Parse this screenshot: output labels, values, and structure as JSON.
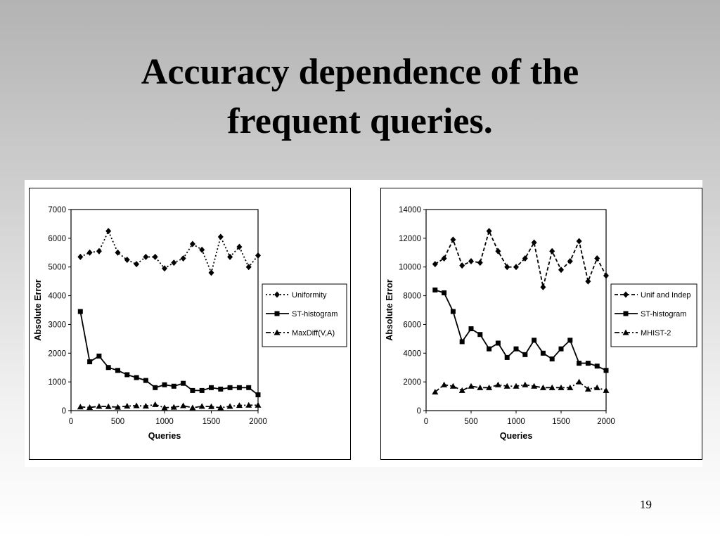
{
  "slide": {
    "title_line1": "Accuracy dependence of the",
    "title_line2": "frequent queries.",
    "page_number": "19"
  },
  "chart_data": [
    {
      "type": "line",
      "title": "",
      "xlabel": "Queries",
      "ylabel": "Absolute Error",
      "xlim": [
        0,
        2000
      ],
      "ylim": [
        0,
        7000
      ],
      "xticks": [
        0,
        500,
        1000,
        1500,
        2000
      ],
      "yticks": [
        0,
        1000,
        2000,
        3000,
        4000,
        5000,
        6000,
        7000
      ],
      "grid": false,
      "legend": "right",
      "x": [
        100,
        200,
        300,
        400,
        500,
        600,
        700,
        800,
        900,
        1000,
        1100,
        1200,
        1300,
        1400,
        1500,
        1600,
        1700,
        1800,
        1900,
        2000
      ],
      "series": [
        {
          "name": "Uniformity",
          "style": "dotted",
          "marker": "diamond",
          "values": [
            5350,
            5500,
            5550,
            6250,
            5500,
            5250,
            5100,
            5350,
            5350,
            4950,
            5150,
            5300,
            5800,
            5600,
            4800,
            6050,
            5350,
            5700,
            5000,
            5400
          ]
        },
        {
          "name": "ST-histogram",
          "style": "solid",
          "marker": "square",
          "values": [
            3450,
            1700,
            1900,
            1500,
            1400,
            1250,
            1150,
            1050,
            800,
            900,
            850,
            950,
            700,
            700,
            800,
            750,
            800,
            800,
            800,
            550
          ]
        },
        {
          "name": "MaxDiff(V,A)",
          "style": "dashdot",
          "marker": "triangle",
          "values": [
            130,
            110,
            150,
            140,
            120,
            160,
            170,
            160,
            210,
            100,
            120,
            170,
            100,
            150,
            140,
            100,
            150,
            180,
            190,
            190
          ]
        }
      ]
    },
    {
      "type": "line",
      "title": "",
      "xlabel": "Queries",
      "ylabel": "Absolute Error",
      "xlim": [
        0,
        2000
      ],
      "ylim": [
        0,
        14000
      ],
      "xticks": [
        0,
        500,
        1000,
        1500,
        2000
      ],
      "yticks": [
        0,
        2000,
        4000,
        6000,
        8000,
        10000,
        12000,
        14000
      ],
      "grid": false,
      "legend": "right",
      "x": [
        100,
        200,
        300,
        400,
        500,
        600,
        700,
        800,
        900,
        1000,
        1100,
        1200,
        1300,
        1400,
        1500,
        1600,
        1700,
        1800,
        1900,
        2000
      ],
      "series": [
        {
          "name": "Unif and Indep",
          "style": "dashed",
          "marker": "diamond",
          "values": [
            10200,
            10600,
            11900,
            10100,
            10400,
            10300,
            12500,
            11100,
            10000,
            10000,
            10600,
            11700,
            8600,
            11100,
            9800,
            10400,
            11800,
            9000,
            10600,
            9400
          ]
        },
        {
          "name": "ST-histogram",
          "style": "solid",
          "marker": "square",
          "values": [
            8400,
            8200,
            6900,
            4800,
            5700,
            5300,
            4300,
            4700,
            3700,
            4300,
            3900,
            4900,
            4000,
            3600,
            4300,
            4900,
            3300,
            3300,
            3100,
            2800
          ]
        },
        {
          "name": "MHIST-2",
          "style": "dashdot",
          "marker": "triangle",
          "values": [
            1300,
            1800,
            1700,
            1400,
            1700,
            1600,
            1600,
            1800,
            1700,
            1700,
            1800,
            1700,
            1600,
            1600,
            1600,
            1600,
            2000,
            1500,
            1600,
            1400
          ]
        }
      ]
    }
  ]
}
